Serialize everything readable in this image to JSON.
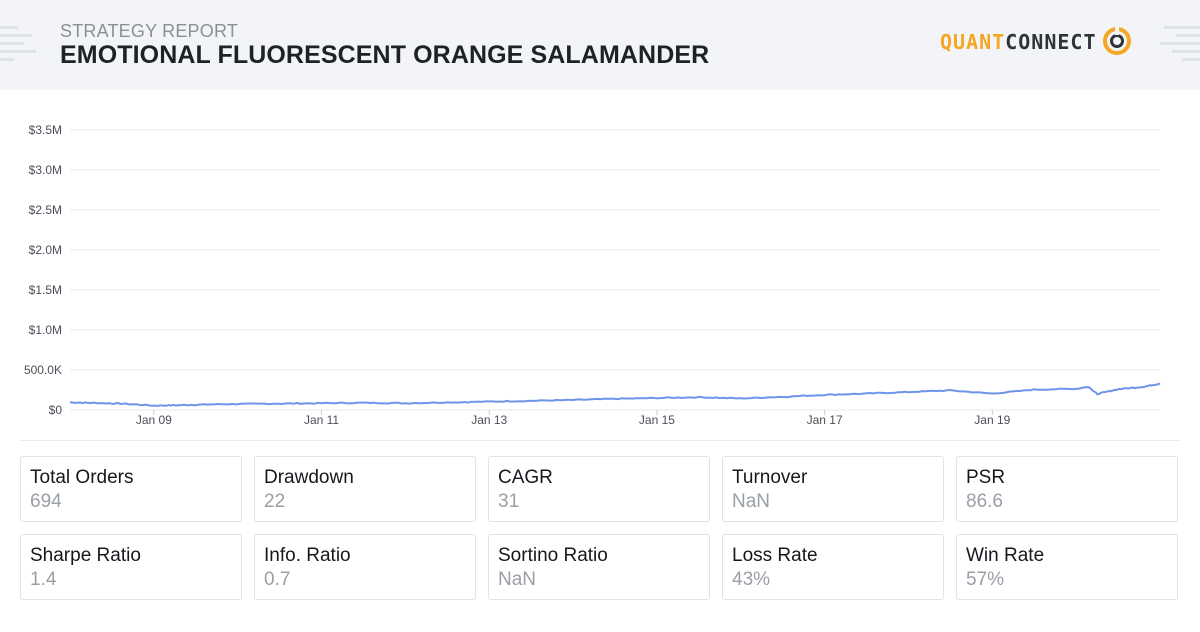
{
  "header": {
    "subtitle": "STRATEGY REPORT",
    "title": "EMOTIONAL FLUORESCENT ORANGE SALAMANDER",
    "logo_part1": "QUANT",
    "logo_part2": "CONNECT"
  },
  "colors": {
    "line": "#6f95ea",
    "grid": "#e6e8eb",
    "header_bg": "#f3f4f7",
    "logo_orange": "#f5a623",
    "logo_dark": "#2f343b"
  },
  "chart_data": {
    "type": "line",
    "title": "",
    "xlabel": "",
    "ylabel": "",
    "ylim": [
      0,
      3500000
    ],
    "y_ticks": [
      "$0",
      "500.0K",
      "$1.0M",
      "$1.5M",
      "$2.0M",
      "$2.5M",
      "$3.0M",
      "$3.5M"
    ],
    "y_tick_values": [
      0,
      500000,
      1000000,
      1500000,
      2000000,
      2500000,
      3000000,
      3500000
    ],
    "x_range": [
      2008.0,
      2021.0
    ],
    "x_ticks": [
      "Jan 09",
      "Jan 11",
      "Jan 13",
      "Jan 15",
      "Jan 17",
      "Jan 19"
    ],
    "x_tick_values": [
      2009.0,
      2011.0,
      2013.0,
      2015.0,
      2017.0,
      2019.0
    ],
    "grid": true,
    "legend": "none",
    "series": [
      {
        "x": [
          2008.0,
          2008.3,
          2008.6,
          2009.0,
          2009.3,
          2009.6,
          2010.0,
          2010.5,
          2011.0,
          2011.5,
          2012.0,
          2012.5,
          2013.0,
          2013.5,
          2014.0,
          2014.5,
          2015.0,
          2015.5,
          2016.0,
          2016.5,
          2017.0,
          2017.5,
          2018.0,
          2018.5,
          2019.0,
          2019.5,
          2020.0,
          2020.15,
          2020.25,
          2020.5,
          2020.8,
          2021.0
        ],
        "values": [
          95000,
          88000,
          80000,
          55000,
          60000,
          68000,
          75000,
          80000,
          85000,
          90000,
          85000,
          95000,
          105000,
          115000,
          125000,
          140000,
          150000,
          160000,
          145000,
          165000,
          190000,
          205000,
          225000,
          245000,
          205000,
          255000,
          265000,
          290000,
          200000,
          260000,
          290000,
          330000
        ]
      }
    ]
  },
  "stats": [
    {
      "label": "Total Orders",
      "value": "694"
    },
    {
      "label": "Drawdown",
      "value": "22"
    },
    {
      "label": "CAGR",
      "value": "31"
    },
    {
      "label": "Turnover",
      "value": "NaN"
    },
    {
      "label": "PSR",
      "value": "86.6"
    },
    {
      "label": "Sharpe Ratio",
      "value": "1.4"
    },
    {
      "label": "Info. Ratio",
      "value": "0.7"
    },
    {
      "label": "Sortino Ratio",
      "value": "NaN"
    },
    {
      "label": "Loss Rate",
      "value": "43%"
    },
    {
      "label": "Win Rate",
      "value": "57%"
    }
  ]
}
